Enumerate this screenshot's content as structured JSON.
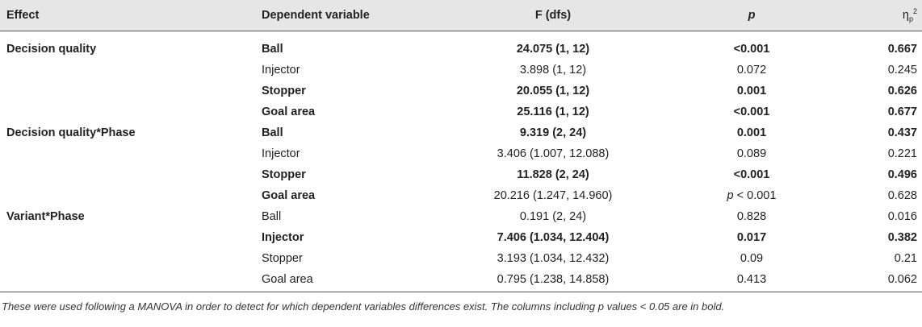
{
  "table": {
    "headers": {
      "effect": "Effect",
      "dependent_variable": "Dependent variable",
      "f": "F (dfs)",
      "p": "p",
      "eta_main": "η",
      "eta_sub": "p",
      "eta_sup": "2"
    },
    "rows": [
      {
        "effect": "Decision quality",
        "dv": "Ball",
        "f": "24.075 (1, 12)",
        "p": "<0.001",
        "eta": "0.667",
        "bold": true
      },
      {
        "effect": "",
        "dv": "Injector",
        "f": "3.898 (1, 12)",
        "p": "0.072",
        "eta": "0.245",
        "bold": false
      },
      {
        "effect": "",
        "dv": "Stopper",
        "f": "20.055 (1, 12)",
        "p": "0.001",
        "eta": "0.626",
        "bold": true
      },
      {
        "effect": "",
        "dv": "Goal area",
        "f": "25.116 (1, 12)",
        "p": "<0.001",
        "eta": "0.677",
        "bold": true
      },
      {
        "effect": "Decision quality*Phase",
        "dv": "Ball",
        "f": "9.319 (2, 24)",
        "p": "0.001",
        "eta": "0.437",
        "bold": true
      },
      {
        "effect": "",
        "dv": "Injector",
        "f": "3.406 (1.007, 12.088)",
        "p": "0.089",
        "eta": "0.221",
        "bold": false
      },
      {
        "effect": "",
        "dv": "Stopper",
        "f": "11.828 (2, 24)",
        "p": "<0.001",
        "eta": "0.496",
        "bold": true
      },
      {
        "effect": "",
        "dv": "Goal area",
        "f": "20.216 (1.247, 14.960)",
        "p_italic": "p",
        "p": " < 0.001",
        "eta": "0.628",
        "bold": "dv-only"
      },
      {
        "effect": "Variant*Phase",
        "dv": "Ball",
        "f": "0.191 (2, 24)",
        "p": "0.828",
        "eta": "0.016",
        "bold": false
      },
      {
        "effect": "",
        "dv": "Injector",
        "f": "7.406 (1.034, 12.404)",
        "p": "0.017",
        "eta": "0.382",
        "bold": true
      },
      {
        "effect": "",
        "dv": "Stopper",
        "f": "3.193 (1.034, 12.432)",
        "p": "0.09",
        "eta": "0.21",
        "bold": false
      },
      {
        "effect": "",
        "dv": "Goal area",
        "f": "0.795 (1.238, 14.858)",
        "p": "0.413",
        "eta": "0.062",
        "bold": false
      }
    ]
  },
  "footnote": "These were used following a MANOVA in order to detect for which dependent variables differences exist. The columns including p values < 0.05 are in bold."
}
